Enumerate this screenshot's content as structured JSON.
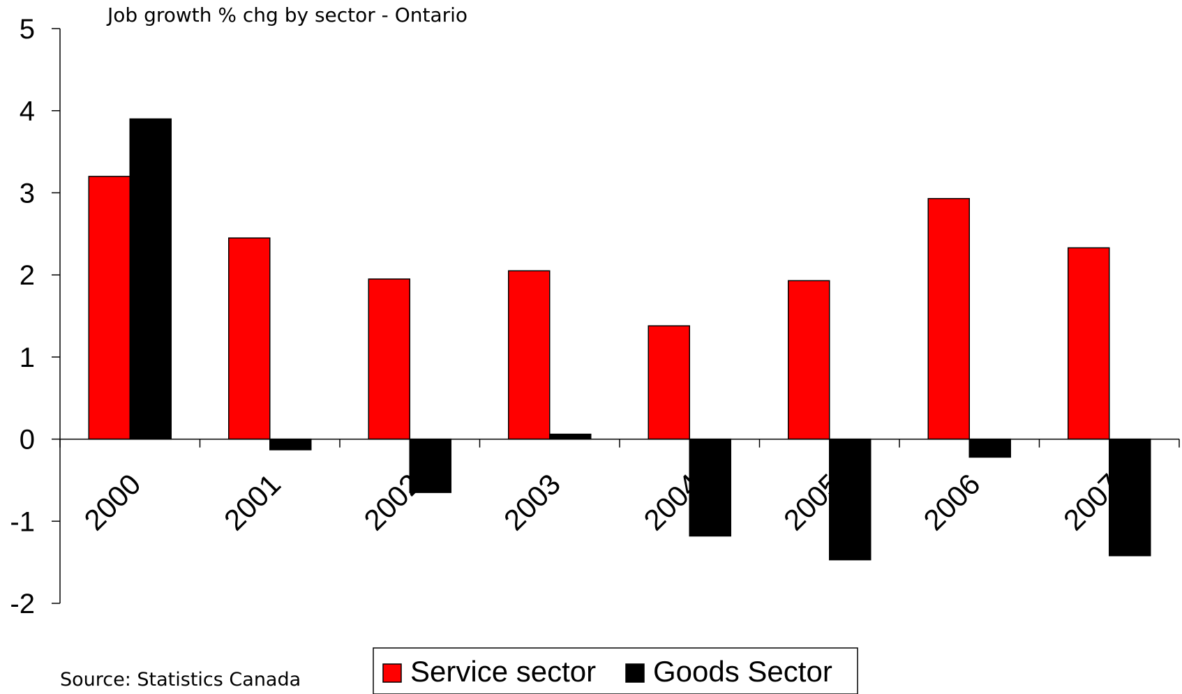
{
  "chart_data": {
    "type": "bar",
    "title": "Job growth % chg by sector - Ontario",
    "source": "Source: Statistics Canada",
    "categories": [
      "2000",
      "2001",
      "2002",
      "2003",
      "2004",
      "2005",
      "2006",
      "2007"
    ],
    "series": [
      {
        "name": "Service sector",
        "color": "#ff0000",
        "values": [
          3.2,
          2.45,
          1.95,
          2.05,
          1.38,
          1.93,
          2.93,
          2.33
        ]
      },
      {
        "name": "Goods Sector",
        "color": "#000000",
        "values": [
          3.9,
          -0.13,
          -0.65,
          0.06,
          -1.18,
          -1.47,
          -0.22,
          -1.42
        ]
      }
    ],
    "ylim": [
      -2,
      5
    ],
    "yticks": [
      "5",
      "4",
      "3",
      "2",
      "1",
      "0",
      "-1",
      "-2"
    ],
    "xlabel": "",
    "ylabel": "",
    "grid": false,
    "legend": "bottom-center"
  }
}
